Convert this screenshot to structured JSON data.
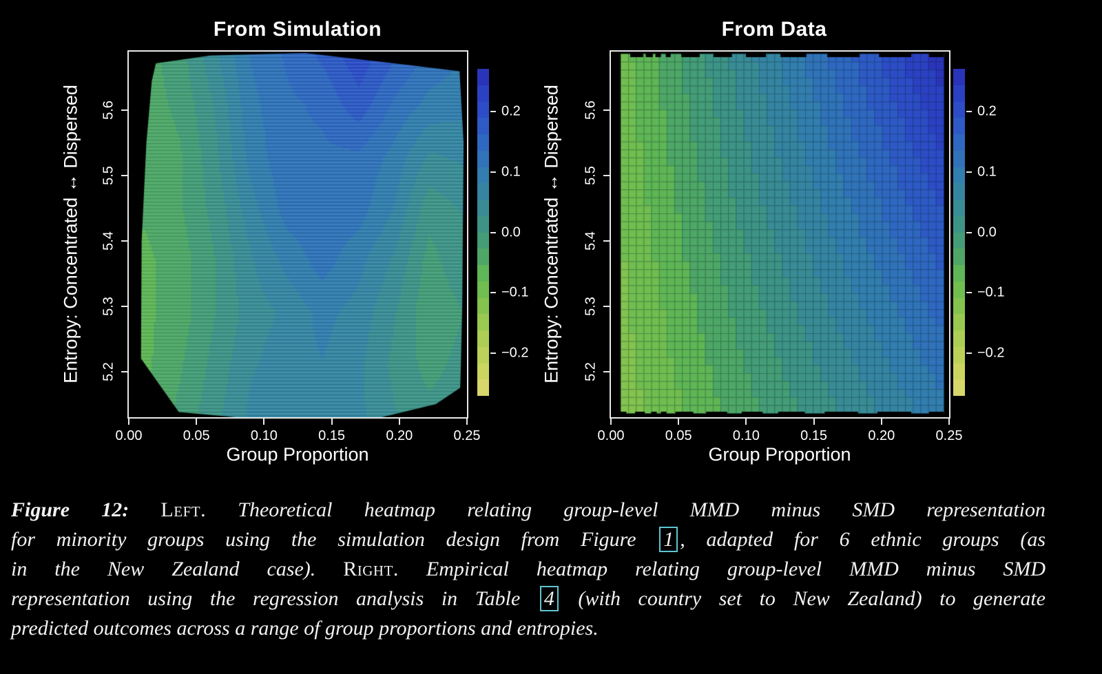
{
  "page": {
    "background": "#000000",
    "text_color": "#ffffff",
    "link_box_color": "#5ec6d2"
  },
  "colormap": {
    "vmin": -0.27,
    "vmax": 0.27,
    "step": 0.027,
    "segments": 20,
    "stops": [
      [
        -0.27,
        "#ddd871"
      ],
      [
        -0.22,
        "#c7d45c"
      ],
      [
        -0.165,
        "#a6cc52"
      ],
      [
        -0.115,
        "#7ec24d"
      ],
      [
        -0.075,
        "#63ba51"
      ],
      [
        -0.04,
        "#4ea766"
      ],
      [
        0.0,
        "#3f987e"
      ],
      [
        0.05,
        "#37899b"
      ],
      [
        0.095,
        "#327eae"
      ],
      [
        0.14,
        "#2f6cc0"
      ],
      [
        0.19,
        "#2d53c7"
      ],
      [
        0.235,
        "#2b3ec2"
      ],
      [
        0.27,
        "#2a2eb2"
      ]
    ]
  },
  "chart_data": [
    {
      "type": "heatmap",
      "style": "contour-polygon",
      "title": "From Simulation",
      "xlabel": "Group Proportion",
      "ylabel": "Entropy: Concentrated ↔ Dispersed",
      "xlim": [
        0,
        0.25
      ],
      "ylim": [
        5.13,
        5.69
      ],
      "xticks": [
        0,
        0.05,
        0.1,
        0.15,
        0.2,
        0.25
      ],
      "xtick_labels": [
        "0.00",
        "0.05",
        "0.10",
        "0.15",
        "0.20",
        "0.25"
      ],
      "yticks": [
        5.2,
        5.3,
        5.4,
        5.5,
        5.6
      ],
      "ytick_labels": [
        "5.2",
        "5.3",
        "5.4",
        "5.5",
        "5.6"
      ],
      "scanlines": true,
      "region": [
        [
          0.02,
          5.672
        ],
        [
          0.06,
          5.684
        ],
        [
          0.13,
          5.688
        ],
        [
          0.205,
          5.67
        ],
        [
          0.2445,
          5.66
        ],
        [
          0.2475,
          5.55
        ],
        [
          0.2465,
          5.3
        ],
        [
          0.2455,
          5.21
        ],
        [
          0.245,
          5.175
        ],
        [
          0.227,
          5.15
        ],
        [
          0.187,
          5.13
        ],
        [
          0.1,
          5.126
        ],
        [
          0.037,
          5.138
        ],
        [
          0.009,
          5.22
        ],
        [
          0.0095,
          5.4
        ],
        [
          0.013,
          5.55
        ],
        [
          0.017,
          5.645
        ]
      ],
      "grid": {
        "x": [
          0.012,
          0.038,
          0.064,
          0.09,
          0.117,
          0.143,
          0.17,
          0.196,
          0.222,
          0.248
        ],
        "y": [
          5.13,
          5.21,
          5.29,
          5.37,
          5.45,
          5.53,
          5.61,
          5.69
        ],
        "values": [
          [
            -0.05,
            -0.02,
            0.02,
            0.06,
            0.08,
            0.08,
            0.06,
            0.03,
            0.01,
            0.02
          ],
          [
            -0.06,
            -0.03,
            0.01,
            0.05,
            0.07,
            0.08,
            0.06,
            0.02,
            -0.01,
            0.01
          ],
          [
            -0.06,
            -0.04,
            0.0,
            0.04,
            0.06,
            0.09,
            0.07,
            0.03,
            -0.02,
            0.0
          ],
          [
            -0.06,
            -0.04,
            0.0,
            0.05,
            0.09,
            0.12,
            0.09,
            0.05,
            -0.01,
            0.02
          ],
          [
            -0.05,
            -0.03,
            0.01,
            0.07,
            0.12,
            0.13,
            0.12,
            0.08,
            0.01,
            0.03
          ],
          [
            -0.05,
            -0.03,
            0.02,
            0.09,
            0.13,
            0.13,
            0.13,
            0.1,
            0.05,
            0.06
          ],
          [
            -0.04,
            -0.02,
            0.03,
            0.1,
            0.13,
            0.14,
            0.18,
            0.13,
            0.1,
            0.09
          ],
          [
            -0.04,
            -0.01,
            0.05,
            0.11,
            0.14,
            0.17,
            0.21,
            0.17,
            0.13,
            0.11
          ]
        ]
      },
      "colorbar": {
        "ticks": [
          0.2,
          0.1,
          0.0,
          -0.1,
          -0.2
        ],
        "tick_labels": [
          "0.2",
          "0.1",
          "0.0",
          "−0.1",
          "−0.2"
        ]
      }
    },
    {
      "type": "heatmap",
      "style": "grid-cells",
      "title": "From Data",
      "xlabel": "Group Proportion",
      "ylabel": "Entropy: Concentrated ↔ Dispersed",
      "xlim": [
        0,
        0.25
      ],
      "ylim": [
        5.13,
        5.69
      ],
      "xticks": [
        0,
        0.05,
        0.1,
        0.15,
        0.2,
        0.25
      ],
      "xtick_labels": [
        "0.00",
        "0.05",
        "0.10",
        "0.15",
        "0.20",
        "0.25"
      ],
      "yticks": [
        5.2,
        5.3,
        5.4,
        5.5,
        5.6
      ],
      "ytick_labels": [
        "5.2",
        "5.3",
        "5.4",
        "5.5",
        "5.6"
      ],
      "cells": {
        "cols": 42,
        "rows": 45
      },
      "grid": {
        "x": [
          0.005,
          0.054,
          0.103,
          0.152,
          0.201,
          0.25
        ],
        "y": [
          5.15,
          5.256,
          5.362,
          5.468,
          5.574,
          5.68
        ],
        "values": [
          [
            -0.125,
            -0.079,
            -0.032,
            0.014,
            0.061,
            0.108
          ],
          [
            -0.119,
            -0.068,
            -0.016,
            0.036,
            0.088,
            0.139
          ],
          [
            -0.114,
            -0.057,
            0.0,
            0.057,
            0.114,
            0.171
          ],
          [
            -0.108,
            -0.046,
            0.017,
            0.079,
            0.141,
            0.203
          ],
          [
            -0.102,
            -0.035,
            0.033,
            0.1,
            0.167,
            0.235
          ],
          [
            -0.096,
            -0.024,
            0.049,
            0.121,
            0.194,
            0.267
          ]
        ]
      },
      "edge_dashes": {
        "top": [
          [
            0.03,
            0.07
          ],
          [
            0.078,
            0.1
          ],
          [
            0.108,
            0.125
          ],
          [
            0.14,
            0.155
          ],
          [
            0.188,
            0.245
          ],
          [
            0.288,
            0.345
          ],
          [
            0.388,
            0.45
          ],
          [
            0.495,
            0.575
          ],
          [
            0.64,
            0.74
          ],
          [
            0.8,
            0.9
          ],
          [
            0.955,
            1.0
          ]
        ],
        "bottom": [
          [
            0.0,
            0.018
          ],
          [
            0.045,
            0.075
          ],
          [
            0.095,
            0.112
          ],
          [
            0.125,
            0.142
          ],
          [
            0.17,
            0.225
          ],
          [
            0.265,
            0.33
          ],
          [
            0.375,
            0.44
          ],
          [
            0.488,
            0.57
          ],
          [
            0.632,
            0.735
          ],
          [
            0.795,
            0.9
          ],
          [
            0.955,
            1.0
          ]
        ]
      },
      "colorbar": {
        "ticks": [
          0.2,
          0.1,
          0.0,
          -0.1,
          -0.2
        ],
        "tick_labels": [
          "0.2",
          "0.1",
          "0.0",
          "−0.1",
          "−0.2"
        ]
      }
    }
  ],
  "caption": {
    "lines": [
      [
        {
          "style": "figbold",
          "text": "Figure 12:",
          "name": "caption-figure-label"
        },
        {
          "style": "plain",
          "text": " "
        },
        {
          "style": "smallcaps",
          "text": "Left.",
          "name": "caption-left-tag"
        },
        {
          "style": "italic",
          "text": " Theoretical heatmap relating group-level MMD minus SMD representation"
        }
      ],
      [
        {
          "style": "italic",
          "text": "for minority groups using the simulation design from Figure "
        },
        {
          "style": "boxref",
          "text": "1",
          "name": "figure-1-link"
        },
        {
          "style": "italic",
          "text": ", adapted for 6 ethnic groups (as"
        }
      ],
      [
        {
          "style": "italic",
          "text": "in the New Zealand case). "
        },
        {
          "style": "smallcaps",
          "text": "Right.",
          "name": "caption-right-tag"
        },
        {
          "style": "italic",
          "text": " Empirical heatmap relating group-level MMD minus SMD"
        }
      ],
      [
        {
          "style": "italic",
          "text": "representation using the regression analysis in Table "
        },
        {
          "style": "boxref",
          "text": "4",
          "name": "table-4-link"
        },
        {
          "style": "italic",
          "text": " (with country set to New Zealand) to generate"
        }
      ],
      [
        {
          "style": "italic",
          "text": "predicted outcomes across a range of group proportions and entropies."
        }
      ]
    ]
  }
}
